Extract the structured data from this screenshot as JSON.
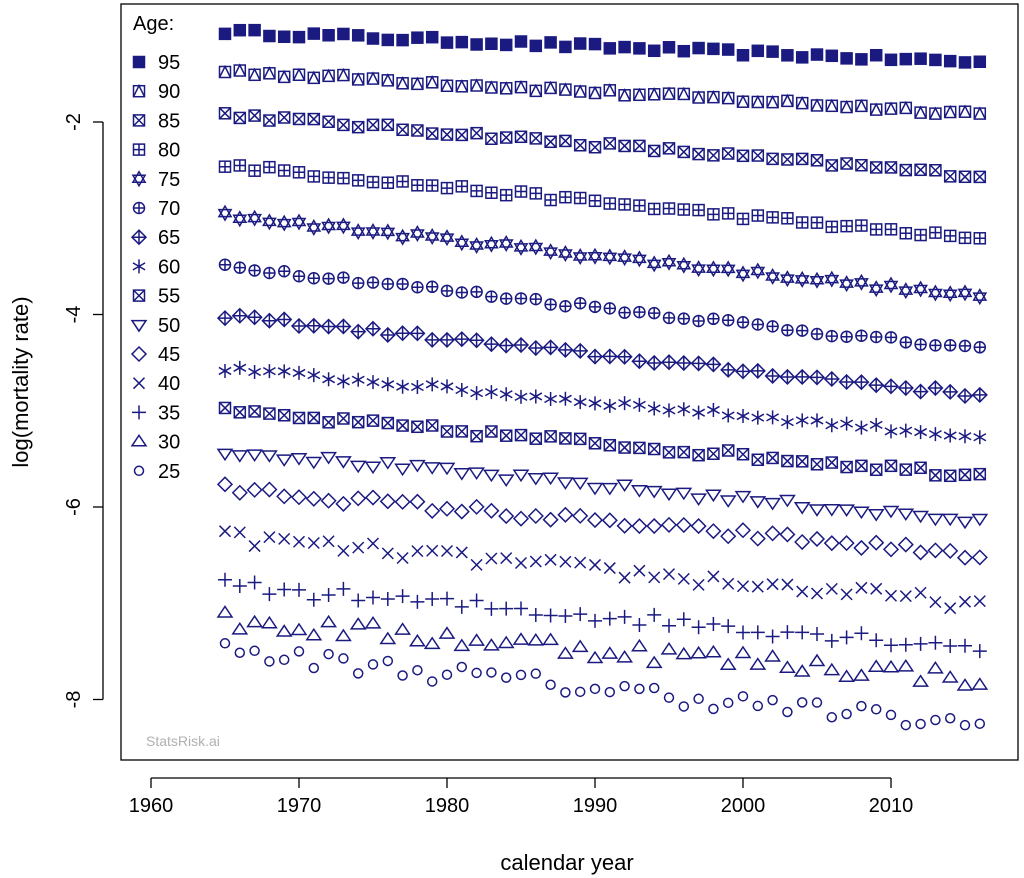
{
  "chart_data": {
    "type": "scatter",
    "xlabel": "calendar year",
    "ylabel": "log(mortality rate)",
    "xlim": [
      1955.5,
      2018.5
    ],
    "ylim": [
      -8.3,
      -0.95
    ],
    "x_ticks": [
      1960,
      1970,
      1980,
      1990,
      2000,
      2010
    ],
    "y_ticks": [
      -2,
      -4,
      -6,
      -8
    ],
    "legend_title": "Age:",
    "legend_position": "top-left inside",
    "watermark": "StatsRisk.ai",
    "grid": false,
    "color": "#1a1a80",
    "years": {
      "start": 1965,
      "end": 2016
    },
    "series": [
      {
        "name": "95",
        "marker": "filled-square",
        "start": -1.06,
        "end": -1.38,
        "noise": 0.03
      },
      {
        "name": "90",
        "marker": "triangle-in-square",
        "start": -1.47,
        "end": -1.91,
        "noise": 0.03
      },
      {
        "name": "85",
        "marker": "x-in-square",
        "start": -1.92,
        "end": -2.56,
        "noise": 0.03
      },
      {
        "name": "80",
        "marker": "plus-in-square",
        "start": -2.45,
        "end": -3.22,
        "noise": 0.03
      },
      {
        "name": "75",
        "marker": "star-of-david",
        "start": -2.97,
        "end": -3.82,
        "noise": 0.03
      },
      {
        "name": "70",
        "marker": "circle-plus",
        "start": -3.49,
        "end": -4.37,
        "noise": 0.03
      },
      {
        "name": "65",
        "marker": "diamond-plus",
        "start": -4.01,
        "end": -4.84,
        "noise": 0.03
      },
      {
        "name": "60",
        "marker": "asterisk",
        "start": -4.56,
        "end": -5.27,
        "noise": 0.03
      },
      {
        "name": "55",
        "marker": "square-x",
        "start": -5.01,
        "end": -5.67,
        "noise": 0.04
      },
      {
        "name": "50",
        "marker": "triangle-down",
        "start": -5.41,
        "end": -6.15,
        "noise": 0.04
      },
      {
        "name": "45",
        "marker": "diamond",
        "start": -5.81,
        "end": -6.5,
        "noise": 0.05
      },
      {
        "name": "40",
        "marker": "x",
        "start": -6.31,
        "end": -7.01,
        "noise": 0.07
      },
      {
        "name": "35",
        "marker": "plus",
        "start": -6.82,
        "end": -7.45,
        "noise": 0.07
      },
      {
        "name": "30",
        "marker": "triangle-up",
        "start": -7.19,
        "end": -7.78,
        "noise": 0.1
      },
      {
        "name": "25",
        "marker": "circle",
        "start": -7.5,
        "end": -8.28,
        "noise": 0.1
      }
    ]
  }
}
